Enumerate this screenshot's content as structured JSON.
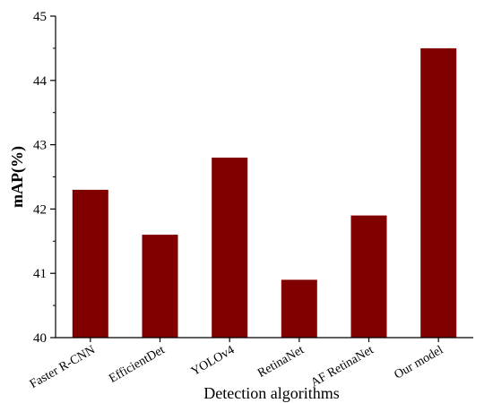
{
  "chart_data": {
    "type": "bar",
    "title": "",
    "xlabel": "Detection algorithms",
    "ylabel": "mAP(%)",
    "categories": [
      "Faster R-CNN",
      "EfficientDet",
      "YOLOv4",
      "RetinaNet",
      "AF RetinaNet",
      "Our model"
    ],
    "values": [
      42.3,
      41.6,
      42.8,
      40.9,
      41.9,
      44.5
    ],
    "ylim": [
      40,
      45
    ],
    "yticks": [
      "40",
      "41",
      "42",
      "43",
      "44",
      "45"
    ],
    "minor_ticks": true,
    "grid": false,
    "legend": "none",
    "bar_color": "#800000",
    "axis_color": "#000000"
  }
}
